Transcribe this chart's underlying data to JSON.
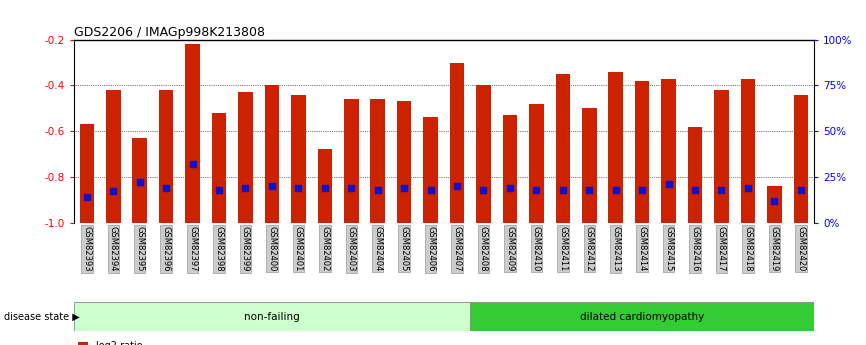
{
  "title": "GDS2206 / IMAGp998K213808",
  "samples": [
    "GSM82393",
    "GSM82394",
    "GSM82395",
    "GSM82396",
    "GSM82397",
    "GSM82398",
    "GSM82399",
    "GSM82400",
    "GSM82401",
    "GSM82402",
    "GSM82403",
    "GSM82404",
    "GSM82405",
    "GSM82406",
    "GSM82407",
    "GSM82408",
    "GSM82409",
    "GSM82410",
    "GSM82411",
    "GSM82412",
    "GSM82413",
    "GSM82414",
    "GSM82415",
    "GSM82416",
    "GSM82417",
    "GSM82418",
    "GSM82419",
    "GSM82420"
  ],
  "log2_ratio": [
    -0.57,
    -0.42,
    -0.63,
    -0.42,
    -0.22,
    -0.52,
    -0.43,
    -0.4,
    -0.44,
    -0.68,
    -0.46,
    -0.46,
    -0.47,
    -0.54,
    -0.3,
    -0.4,
    -0.53,
    -0.48,
    -0.35,
    -0.5,
    -0.34,
    -0.38,
    -0.37,
    -0.58,
    -0.42,
    -0.37,
    -0.84,
    -0.44
  ],
  "percentile": [
    14,
    17,
    22,
    19,
    32,
    18,
    19,
    20,
    19,
    19,
    19,
    18,
    19,
    18,
    20,
    18,
    19,
    18,
    18,
    18,
    18,
    18,
    21,
    18,
    18,
    19,
    12,
    18
  ],
  "non_failing_count": 15,
  "dilated_count": 13,
  "ymin": -1.0,
  "ymax": -0.2,
  "yticks": [
    -1.0,
    -0.8,
    -0.6,
    -0.4,
    -0.2
  ],
  "right_yticks_pct": [
    0,
    25,
    50,
    75,
    100
  ],
  "bar_color": "#cc2200",
  "dot_color": "#1111cc",
  "nonfailing_color": "#ccffcc",
  "dilated_color": "#33cc33",
  "label_bg_color": "#cccccc",
  "label_edge_color": "#999999"
}
